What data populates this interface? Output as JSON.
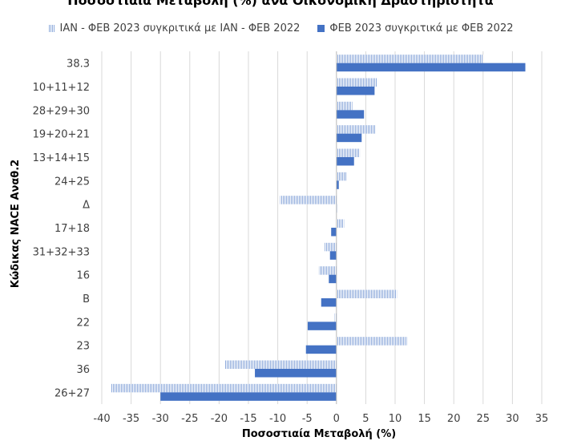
{
  "chart_data": {
    "type": "bar",
    "orientation": "horizontal",
    "title": "Ποσοστιαία Μεταβολή (%) ανά Οικονομική Δραστηριότητα",
    "xlabel": "Ποσοστιαία Μεταβολή (%)",
    "ylabel": "Κώδικας NACE Αναθ.2",
    "xlim": [
      -40,
      35
    ],
    "xticks": [
      -40,
      -35,
      -30,
      -25,
      -20,
      -15,
      -10,
      -5,
      0,
      5,
      10,
      15,
      20,
      25,
      30,
      35
    ],
    "grid": "vertical",
    "legend_position": "top",
    "categories": [
      "38.3",
      "10+11+12",
      "28+29+30",
      "19+20+21",
      "13+14+15",
      "24+25",
      "Δ",
      "17+18",
      "31+32+33",
      "16",
      "B",
      "22",
      "23",
      "36",
      "26+27"
    ],
    "series": [
      {
        "name": "ΙΑΝ - ΦΕΒ 2023 συγκριτικά με ΙΑΝ - ΦΕΒ 2022",
        "color": "#8eaadb",
        "pattern": "hatched",
        "values": [
          25.0,
          7.0,
          2.7,
          6.6,
          4.0,
          1.8,
          -9.6,
          1.3,
          -2.0,
          -3.0,
          10.3,
          -0.3,
          12.0,
          -19.0,
          -38.5
        ]
      },
      {
        "name": "ΦΕΒ 2023 συγκριτικά με ΦΕΒ 2022",
        "color": "#4472c4",
        "pattern": "solid",
        "values": [
          32.2,
          6.5,
          4.7,
          4.3,
          3.0,
          0.4,
          0.0,
          -0.9,
          -1.1,
          -1.3,
          -2.6,
          -4.9,
          -5.2,
          -13.9,
          -30.0
        ]
      }
    ]
  }
}
